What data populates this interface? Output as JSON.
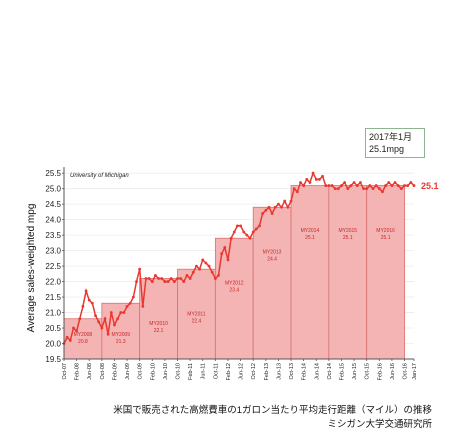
{
  "callout": {
    "line1": "2017年1月",
    "line2": "25.1mpg"
  },
  "caption": {
    "line1": "米国で販売された高燃費車の1ガロン当たり平均走行距離（マイル）の推移",
    "line2": "ミシガン大学交通研究所"
  },
  "colors": {
    "line": "#e8382f",
    "bar_fill": "#f4b4b4",
    "bar_stroke": "#d97070",
    "latest_label": "#e8382f"
  },
  "chart_data": {
    "type": "line",
    "source_note": "University of Michigan",
    "ylabel": "Average sales-weighted mpg",
    "ylim": [
      19.5,
      25.7
    ],
    "yticks": [
      19.5,
      20.0,
      20.5,
      21.0,
      21.5,
      22.0,
      22.5,
      23.0,
      23.5,
      24.0,
      24.5,
      25.0,
      25.5
    ],
    "xlim": [
      "2007-10",
      "2017-01"
    ],
    "x_ticks": [
      "Oct-07",
      "Feb-08",
      "Jun-08",
      "Oct-08",
      "Feb-09",
      "Jun-09",
      "Oct-09",
      "Feb-10",
      "Jun-10",
      "Oct-10",
      "Feb-11",
      "Jun-11",
      "Oct-11",
      "Feb-12",
      "Jun-12",
      "Oct-12",
      "Feb-13",
      "Jun-13",
      "Oct-13",
      "Feb-14",
      "Jun-14",
      "Oct-14",
      "Feb-15",
      "Jun-15",
      "Oct-15",
      "Feb-16",
      "Jun-16",
      "Oct-16",
      "Jan-17"
    ],
    "latest_label": "25.1",
    "model_years": [
      {
        "label": "MY2008",
        "value": 20.8,
        "value_label": "20.8",
        "start": "2007-10",
        "end": "2008-10"
      },
      {
        "label": "MY2009",
        "value": 21.3,
        "value_label": "21.3",
        "start": "2008-10",
        "end": "2009-10"
      },
      {
        "label": "MY2010",
        "value": 22.1,
        "value_label": "22.1",
        "start": "2009-10",
        "end": "2010-10"
      },
      {
        "label": "MY2011",
        "value": 22.4,
        "value_label": "22.4",
        "start": "2010-10",
        "end": "2011-10"
      },
      {
        "label": "MY2012",
        "value": 23.4,
        "value_label": "23.4",
        "start": "2011-10",
        "end": "2012-10"
      },
      {
        "label": "MY2013",
        "value": 24.4,
        "value_label": "24.4",
        "start": "2012-10",
        "end": "2013-10"
      },
      {
        "label": "MY2014",
        "value": 25.1,
        "value_label": "25.1",
        "start": "2013-10",
        "end": "2014-10"
      },
      {
        "label": "MY2015",
        "value": 25.1,
        "value_label": "25.1",
        "start": "2014-10",
        "end": "2015-10"
      },
      {
        "label": "MY2016",
        "value": 25.1,
        "value_label": "25.1",
        "start": "2015-10",
        "end": "2016-10"
      }
    ],
    "series": [
      {
        "x": [
          "2007-10",
          "2007-11",
          "2007-12",
          "2008-01",
          "2008-02",
          "2008-03",
          "2008-04",
          "2008-05",
          "2008-06",
          "2008-07",
          "2008-08",
          "2008-09",
          "2008-10",
          "2008-11",
          "2008-12",
          "2009-01",
          "2009-02",
          "2009-03",
          "2009-04",
          "2009-05",
          "2009-06",
          "2009-07",
          "2009-08",
          "2009-09",
          "2009-10",
          "2009-11",
          "2009-12",
          "2010-01",
          "2010-02",
          "2010-03",
          "2010-04",
          "2010-05",
          "2010-06",
          "2010-07",
          "2010-08",
          "2010-09",
          "2010-10",
          "2010-11",
          "2010-12",
          "2011-01",
          "2011-02",
          "2011-03",
          "2011-04",
          "2011-05",
          "2011-06",
          "2011-07",
          "2011-08",
          "2011-09",
          "2011-10",
          "2011-11",
          "2011-12",
          "2012-01",
          "2012-02",
          "2012-03",
          "2012-04",
          "2012-05",
          "2012-06",
          "2012-07",
          "2012-08",
          "2012-09",
          "2012-10",
          "2012-11",
          "2012-12",
          "2013-01",
          "2013-02",
          "2013-03",
          "2013-04",
          "2013-05",
          "2013-06",
          "2013-07",
          "2013-08",
          "2013-09",
          "2013-10",
          "2013-11",
          "2013-12",
          "2014-01",
          "2014-02",
          "2014-03",
          "2014-04",
          "2014-05",
          "2014-06",
          "2014-07",
          "2014-08",
          "2014-09",
          "2014-10",
          "2014-11",
          "2014-12",
          "2015-01",
          "2015-02",
          "2015-03",
          "2015-04",
          "2015-05",
          "2015-06",
          "2015-07",
          "2015-08",
          "2015-09",
          "2015-10",
          "2015-11",
          "2015-12",
          "2016-01",
          "2016-02",
          "2016-03",
          "2016-04",
          "2016-05",
          "2016-06",
          "2016-07",
          "2016-08",
          "2016-09",
          "2016-10",
          "2016-11",
          "2016-12",
          "2017-01"
        ],
        "values": [
          20.0,
          20.2,
          20.1,
          20.5,
          20.4,
          20.8,
          21.2,
          21.7,
          21.4,
          21.3,
          20.9,
          20.7,
          20.5,
          20.8,
          20.3,
          21.0,
          20.6,
          20.8,
          21.0,
          21.0,
          21.2,
          21.3,
          21.5,
          22.0,
          22.4,
          21.2,
          22.1,
          22.1,
          22.0,
          22.2,
          22.1,
          22.1,
          22.0,
          22.0,
          22.1,
          22.0,
          22.1,
          22.1,
          22.0,
          22.2,
          22.1,
          22.3,
          22.5,
          22.4,
          22.7,
          22.6,
          22.5,
          22.3,
          22.1,
          22.2,
          22.9,
          23.1,
          22.7,
          23.4,
          23.6,
          23.8,
          23.8,
          23.6,
          23.5,
          23.4,
          23.6,
          23.7,
          23.8,
          24.2,
          24.3,
          24.4,
          24.2,
          24.4,
          24.5,
          24.4,
          24.6,
          24.4,
          24.6,
          25.0,
          24.9,
          25.2,
          25.1,
          25.3,
          25.2,
          25.5,
          25.3,
          25.3,
          25.4,
          25.1,
          25.1,
          25.1,
          25.0,
          25.0,
          25.1,
          25.2,
          25.0,
          25.1,
          25.2,
          25.1,
          25.2,
          25.0,
          25.0,
          25.1,
          25.0,
          25.1,
          25.0,
          24.9,
          25.1,
          25.2,
          25.1,
          25.2,
          25.1,
          25.0,
          25.1,
          25.1,
          25.2,
          25.1
        ]
      }
    ]
  }
}
